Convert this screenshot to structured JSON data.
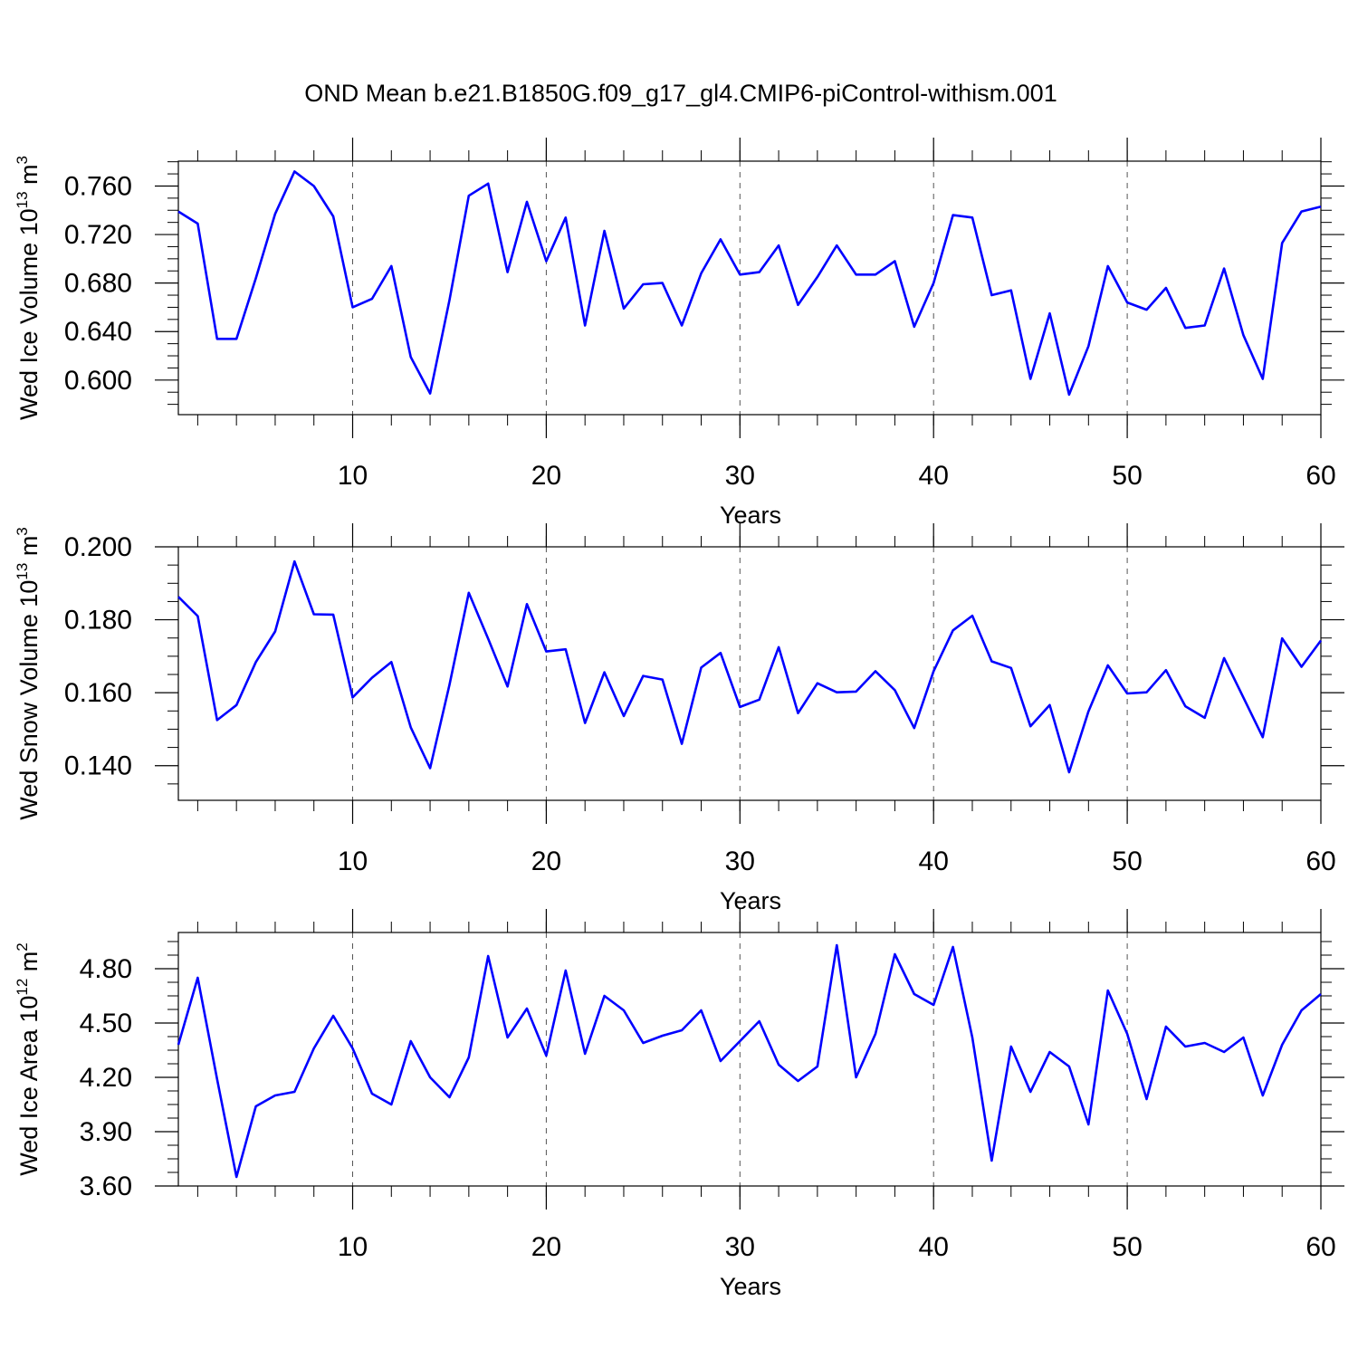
{
  "title": "OND Mean b.e21.B1850G.f09_g17_gl4.CMIP6-piControl-withism.001",
  "colors": {
    "line": "#0000ff",
    "axes": "#000000",
    "grid": "#555555"
  },
  "chart_data": [
    {
      "type": "line",
      "name": "ice-volume",
      "ylabel": {
        "text": "Wed Ice Volume 10",
        "exponent": "13",
        "unit": "m",
        "unit_exponent": "3"
      },
      "xlabel": "Years",
      "xlim": [
        1,
        60
      ],
      "ylim": [
        0.5715,
        0.7805
      ],
      "xticks": [
        10,
        20,
        30,
        40,
        50,
        60
      ],
      "xtick_labels": [
        "10",
        "20",
        "30",
        "40",
        "50",
        "60"
      ],
      "yticks": [
        0.6,
        0.64,
        0.68,
        0.72,
        0.76
      ],
      "ytick_labels": [
        "0.600",
        "0.640",
        "0.680",
        "0.720",
        "0.760"
      ],
      "grid_x": true,
      "x": [
        1,
        2,
        3,
        4,
        5,
        6,
        7,
        8,
        9,
        10,
        11,
        12,
        13,
        14,
        15,
        16,
        17,
        18,
        19,
        20,
        21,
        22,
        23,
        24,
        25,
        26,
        27,
        28,
        29,
        30,
        31,
        32,
        33,
        34,
        35,
        36,
        37,
        38,
        39,
        40,
        41,
        42,
        43,
        44,
        45,
        46,
        47,
        48,
        49,
        50,
        51,
        52,
        53,
        54,
        55,
        56,
        57,
        58,
        59,
        60
      ],
      "values": [
        0.739,
        0.729,
        0.634,
        0.634,
        0.684,
        0.737,
        0.772,
        0.76,
        0.735,
        0.66,
        0.667,
        0.694,
        0.619,
        0.589,
        0.666,
        0.752,
        0.762,
        0.689,
        0.747,
        0.698,
        0.734,
        0.645,
        0.723,
        0.659,
        0.679,
        0.68,
        0.645,
        0.688,
        0.716,
        0.687,
        0.689,
        0.711,
        0.662,
        0.685,
        0.711,
        0.687,
        0.687,
        0.698,
        0.644,
        0.68,
        0.736,
        0.734,
        0.67,
        0.674,
        0.601,
        0.655,
        0.588,
        0.628,
        0.694,
        0.664,
        0.658,
        0.676,
        0.643,
        0.645,
        0.692,
        0.637,
        0.601,
        0.713,
        0.739,
        0.743
      ]
    },
    {
      "type": "line",
      "name": "snow-volume",
      "ylabel": {
        "text": "Wed Snow Volume 10",
        "exponent": "13",
        "unit": "m",
        "unit_exponent": "3"
      },
      "xlabel": "Years",
      "xlim": [
        1,
        60
      ],
      "ylim": [
        0.1305,
        0.2
      ],
      "xticks": [
        10,
        20,
        30,
        40,
        50,
        60
      ],
      "xtick_labels": [
        "10",
        "20",
        "30",
        "40",
        "50",
        "60"
      ],
      "yticks": [
        0.14,
        0.16,
        0.18,
        0.2
      ],
      "ytick_labels": [
        "0.140",
        "0.160",
        "0.180",
        "0.200"
      ],
      "grid_x": true,
      "x": [
        1,
        2,
        3,
        4,
        5,
        6,
        7,
        8,
        9,
        10,
        11,
        12,
        13,
        14,
        15,
        16,
        17,
        18,
        19,
        20,
        21,
        22,
        23,
        24,
        25,
        26,
        27,
        28,
        29,
        30,
        31,
        32,
        33,
        34,
        35,
        36,
        37,
        38,
        39,
        40,
        41,
        42,
        43,
        44,
        45,
        46,
        47,
        48,
        49,
        50,
        51,
        52,
        53,
        54,
        55,
        56,
        57,
        58,
        59,
        60
      ],
      "values": [
        0.1863,
        0.181,
        0.1525,
        0.1566,
        0.1684,
        0.1768,
        0.196,
        0.1815,
        0.1814,
        0.1587,
        0.1641,
        0.1684,
        0.1505,
        0.1393,
        0.1622,
        0.1874,
        0.1748,
        0.1617,
        0.1843,
        0.1713,
        0.1719,
        0.1517,
        0.1656,
        0.1536,
        0.1646,
        0.1636,
        0.146,
        0.1669,
        0.1709,
        0.1561,
        0.1581,
        0.1725,
        0.1544,
        0.1626,
        0.1601,
        0.1603,
        0.1659,
        0.1607,
        0.1503,
        0.1659,
        0.1771,
        0.1811,
        0.1686,
        0.1668,
        0.1508,
        0.1566,
        0.1382,
        0.1549,
        0.1675,
        0.1598,
        0.1601,
        0.1662,
        0.1563,
        0.1531,
        0.1695,
        0.1587,
        0.1478,
        0.1749,
        0.1671,
        0.1743
      ]
    },
    {
      "type": "line",
      "name": "ice-area",
      "ylabel": {
        "text": "Wed Ice Area 10",
        "exponent": "12",
        "unit": "m",
        "unit_exponent": "2"
      },
      "xlabel": "Years",
      "xlim": [
        1,
        60
      ],
      "ylim": [
        3.6,
        5.0
      ],
      "xticks": [
        10,
        20,
        30,
        40,
        50,
        60
      ],
      "xtick_labels": [
        "10",
        "20",
        "30",
        "40",
        "50",
        "60"
      ],
      "yticks": [
        3.6,
        3.9,
        4.2,
        4.5,
        4.8
      ],
      "ytick_labels": [
        "3.60",
        "3.90",
        "4.20",
        "4.50",
        "4.80"
      ],
      "grid_x": true,
      "x": [
        1,
        2,
        3,
        4,
        5,
        6,
        7,
        8,
        9,
        10,
        11,
        12,
        13,
        14,
        15,
        16,
        17,
        18,
        19,
        20,
        21,
        22,
        23,
        24,
        25,
        26,
        27,
        28,
        29,
        30,
        31,
        32,
        33,
        34,
        35,
        36,
        37,
        38,
        39,
        40,
        41,
        42,
        43,
        44,
        45,
        46,
        47,
        48,
        49,
        50,
        51,
        52,
        53,
        54,
        55,
        56,
        57,
        58,
        59,
        60
      ],
      "values": [
        4.38,
        4.75,
        4.19,
        3.65,
        4.04,
        4.1,
        4.12,
        4.36,
        4.54,
        4.36,
        4.11,
        4.05,
        4.4,
        4.2,
        4.09,
        4.31,
        4.87,
        4.42,
        4.58,
        4.32,
        4.79,
        4.33,
        4.65,
        4.57,
        4.39,
        4.43,
        4.46,
        4.57,
        4.29,
        4.4,
        4.51,
        4.27,
        4.18,
        4.26,
        4.93,
        4.2,
        4.44,
        4.88,
        4.66,
        4.6,
        4.92,
        4.42,
        3.74,
        4.37,
        4.12,
        4.34,
        4.26,
        3.94,
        4.68,
        4.44,
        4.08,
        4.48,
        4.37,
        4.39,
        4.34,
        4.42,
        4.1,
        4.38,
        4.57,
        4.66
      ]
    }
  ]
}
